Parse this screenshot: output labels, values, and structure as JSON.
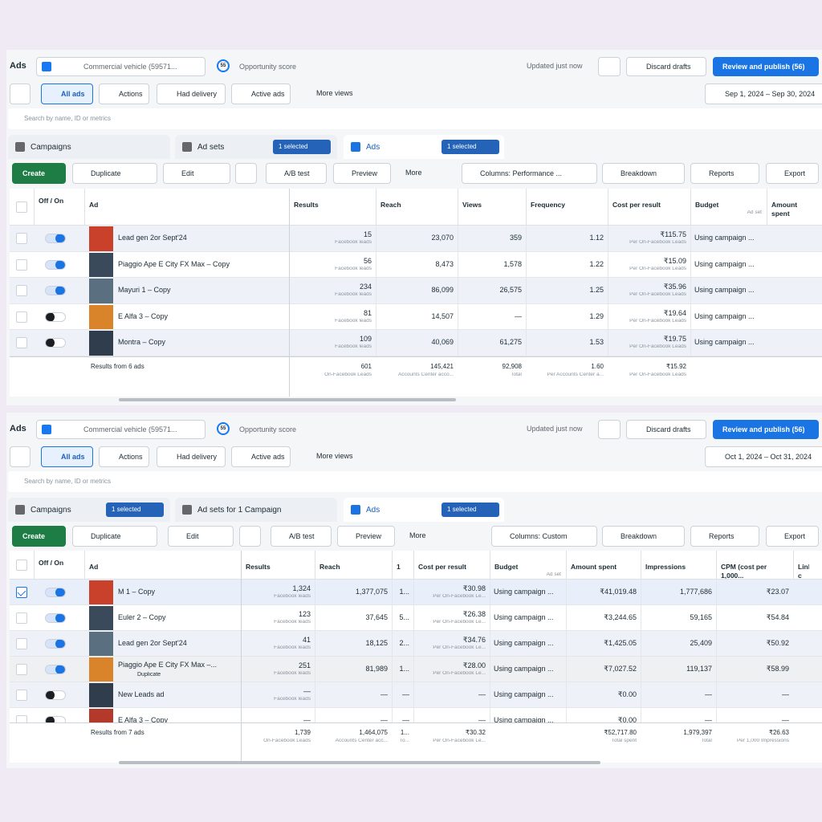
{
  "panels": [
    {
      "top": {
        "title": "Ads",
        "account": "Commercial vehicle (59571...",
        "score": "55",
        "score_label": "Opportunity score",
        "updated": "Updated just now",
        "discard": "Discard drafts",
        "publish": "Review and publish (56)"
      },
      "views": [
        "All ads",
        "Actions",
        "Had delivery",
        "Active ads",
        "More views"
      ],
      "date": "Sep 1, 2024 – Sep 30, 2024",
      "search": "Search by name, ID or metrics",
      "tabs": [
        {
          "label": "Campaigns"
        },
        {
          "label": "Ad sets",
          "badge": "1 selected"
        },
        {
          "label": "Ads",
          "badge": "1 selected"
        }
      ],
      "actions": [
        "Create",
        "Duplicate",
        "Edit",
        "A/B test",
        "Preview",
        "More",
        "Columns: Performance ...",
        "Breakdown",
        "Reports",
        "Export"
      ],
      "columns": [
        {
          "label": "Off / On"
        },
        {
          "label": "Ad"
        },
        {
          "label": "Results"
        },
        {
          "label": "Reach"
        },
        {
          "label": "Views"
        },
        {
          "label": "Frequency"
        },
        {
          "label": "Cost per result"
        },
        {
          "label": "Budget",
          "sub": "Ad set"
        },
        {
          "label": "Amount spent"
        }
      ],
      "rows": [
        {
          "name": "Lead gen 2or Sept'24",
          "on": true,
          "cells": [
            {
              "v": "15",
              "s": "Facebook leads"
            },
            {
              "v": "23,070"
            },
            {
              "v": "359"
            },
            {
              "v": "1.12"
            },
            {
              "v": "₹115.75",
              "s": "Per On-Facebook Leads"
            },
            {
              "v": "Using campaign ..."
            }
          ]
        },
        {
          "name": "Piaggio Ape E City FX Max – Copy",
          "on": true,
          "cells": [
            {
              "v": "56",
              "s": "Facebook leads"
            },
            {
              "v": "8,473"
            },
            {
              "v": "1,578"
            },
            {
              "v": "1.22"
            },
            {
              "v": "₹15.09",
              "s": "Per On-Facebook Leads"
            },
            {
              "v": "Using campaign ..."
            }
          ]
        },
        {
          "name": "Mayuri 1 – Copy",
          "on": true,
          "cells": [
            {
              "v": "234",
              "s": "Facebook leads"
            },
            {
              "v": "86,099"
            },
            {
              "v": "26,575"
            },
            {
              "v": "1.25"
            },
            {
              "v": "₹35.96",
              "s": "Per On-Facebook Leads"
            },
            {
              "v": "Using campaign ..."
            }
          ]
        },
        {
          "name": "E Alfa 3 – Copy",
          "on": false,
          "cells": [
            {
              "v": "81",
              "s": "Facebook leads"
            },
            {
              "v": "14,507"
            },
            {
              "v": "—"
            },
            {
              "v": "1.29"
            },
            {
              "v": "₹19.64",
              "s": "Per On-Facebook Leads"
            },
            {
              "v": "Using campaign ..."
            }
          ]
        },
        {
          "name": "Montra – Copy",
          "on": false,
          "cells": [
            {
              "v": "109",
              "s": "Facebook leads"
            },
            {
              "v": "40,069"
            },
            {
              "v": "61,275"
            },
            {
              "v": "1.53"
            },
            {
              "v": "₹19.75",
              "s": "Per On-Facebook Leads"
            },
            {
              "v": "Using campaign ..."
            }
          ]
        }
      ],
      "total": {
        "label": "Results from 6 ads",
        "cells": [
          {
            "v": "601",
            "s": "On-Facebook Leads"
          },
          {
            "v": "145,421",
            "s": "Accounts Center acco..."
          },
          {
            "v": "92,908",
            "s": "Total"
          },
          {
            "v": "1.60",
            "s": "Per Accounts Center a..."
          },
          {
            "v": "₹15.92",
            "s": "Per On-Facebook Leads"
          }
        ]
      }
    },
    {
      "top": {
        "title": "Ads",
        "account": "Commercial vehicle (59571...",
        "score": "55",
        "score_label": "Opportunity score",
        "updated": "Updated just now",
        "discard": "Discard drafts",
        "publish": "Review and publish (56)"
      },
      "views": [
        "All ads",
        "Actions",
        "Had delivery",
        "Active ads",
        "More views"
      ],
      "date": "Oct 1, 2024 – Oct 31, 2024",
      "search": "Search by name, ID or metrics",
      "tabs": [
        {
          "label": "Campaigns",
          "badge": "1 selected"
        },
        {
          "label": "Ad sets for 1 Campaign"
        },
        {
          "label": "Ads",
          "badge": "1 selected"
        }
      ],
      "actions": [
        "Create",
        "Duplicate",
        "Edit",
        "A/B test",
        "Preview",
        "More",
        "Columns: Custom",
        "Breakdown",
        "Reports",
        "Export"
      ],
      "columns": [
        {
          "label": "Off / On"
        },
        {
          "label": "Ad"
        },
        {
          "label": "Results"
        },
        {
          "label": "Reach"
        },
        {
          "label": "1"
        },
        {
          "label": "Cost per result"
        },
        {
          "label": "Budget",
          "sub": "Ad set"
        },
        {
          "label": "Amount spent"
        },
        {
          "label": "Impressions"
        },
        {
          "label": "CPM (cost per 1,000..."
        },
        {
          "label": "Link c"
        }
      ],
      "rows": [
        {
          "name": "M 1 – Copy",
          "on": true,
          "checked": true,
          "cells": [
            {
              "v": "1,324",
              "s": "Facebook leads"
            },
            {
              "v": "1,377,075"
            },
            {
              "v": "1..."
            },
            {
              "v": "₹30.98",
              "s": "Per On-Facebook Le..."
            },
            {
              "v": "Using campaign ..."
            },
            {
              "v": "₹41,019.48"
            },
            {
              "v": "1,777,686"
            },
            {
              "v": "₹23.07"
            }
          ]
        },
        {
          "name": "Euler 2 – Copy",
          "on": true,
          "cells": [
            {
              "v": "123",
              "s": "Facebook leads"
            },
            {
              "v": "37,645"
            },
            {
              "v": "5..."
            },
            {
              "v": "₹26.38",
              "s": "Per On-Facebook Le..."
            },
            {
              "v": "Using campaign ..."
            },
            {
              "v": "₹3,244.65"
            },
            {
              "v": "59,165"
            },
            {
              "v": "₹54.84"
            }
          ]
        },
        {
          "name": "Lead gen 2or Sept'24",
          "on": true,
          "cells": [
            {
              "v": "41",
              "s": "Facebook leads"
            },
            {
              "v": "18,125"
            },
            {
              "v": "2..."
            },
            {
              "v": "₹34.76",
              "s": "Per On-Facebook Le..."
            },
            {
              "v": "Using campaign ..."
            },
            {
              "v": "₹1,425.05"
            },
            {
              "v": "25,409"
            },
            {
              "v": "₹50.92"
            }
          ]
        },
        {
          "name": "Piaggio Ape E City FX Max –...",
          "on": true,
          "extra": "Duplicate",
          "cells": [
            {
              "v": "251",
              "s": "Facebook leads"
            },
            {
              "v": "81,989"
            },
            {
              "v": "1..."
            },
            {
              "v": "₹28.00",
              "s": "Per On-Facebook Le..."
            },
            {
              "v": "Using campaign ..."
            },
            {
              "v": "₹7,027.52"
            },
            {
              "v": "119,137"
            },
            {
              "v": "₹58.99"
            }
          ]
        },
        {
          "name": "New Leads ad",
          "on": false,
          "cells": [
            {
              "v": "—",
              "s": "Facebook leads"
            },
            {
              "v": "—"
            },
            {
              "v": "—"
            },
            {
              "v": "—"
            },
            {
              "v": "Using campaign ..."
            },
            {
              "v": "₹0.00"
            },
            {
              "v": "—"
            },
            {
              "v": "—"
            }
          ]
        },
        {
          "name": "E Alfa 3 – Copy",
          "on": false,
          "cells": [
            {
              "v": "—"
            },
            {
              "v": "—"
            },
            {
              "v": "—"
            },
            {
              "v": "—"
            },
            {
              "v": "Using campaign ..."
            },
            {
              "v": "₹0.00"
            },
            {
              "v": "—"
            },
            {
              "v": "—"
            }
          ]
        }
      ],
      "total": {
        "label": "Results from 7 ads",
        "cells": [
          {
            "v": "1,739",
            "s": "On-Facebook Leads"
          },
          {
            "v": "1,464,075",
            "s": "Accounts Center acc..."
          },
          {
            "v": "1...",
            "s": "To..."
          },
          {
            "v": "₹30.32",
            "s": "Per On-Facebook Le..."
          },
          {
            "v": ""
          },
          {
            "v": "₹52,717.80",
            "s": "Total spent"
          },
          {
            "v": "1,979,397",
            "s": "Total"
          },
          {
            "v": "₹26.63",
            "s": "Per 1,000 Impressions"
          }
        ]
      }
    }
  ]
}
